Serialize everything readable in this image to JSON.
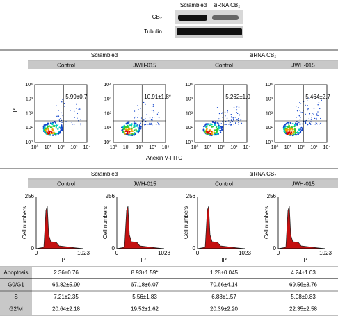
{
  "blot": {
    "columns": [
      "Scrambled",
      "siRNA CB₂"
    ],
    "rows": [
      "CB₂",
      "Tubulin"
    ]
  },
  "flow": {
    "groups": [
      "Scrambled",
      "siRNA CB₂"
    ],
    "conditions": [
      "Control",
      "JWH-015",
      "Control",
      "JWH-015"
    ],
    "quadrant_labels": [
      "5.99±0.7",
      "10.91±1.8*",
      "5.262±1.0",
      "5.464±2.7"
    ],
    "y_label": "IP",
    "x_label": "Anexin V-FITC",
    "ticks": [
      "10⁰",
      "10¹",
      "10²",
      "10³",
      "10⁴"
    ]
  },
  "cycle": {
    "groups": [
      "Scrambled",
      "siRNA CB₂"
    ],
    "conditions": [
      "Control",
      "JWH-015",
      "Control",
      "JWH-015"
    ],
    "y_ticks": [
      "0",
      "256"
    ],
    "x_ticks": [
      "0",
      "1023"
    ],
    "y_label": "Cell numbers",
    "x_label": "IP"
  },
  "table": {
    "rows": [
      [
        "Apoptosis",
        "2.36±0.76",
        "8.93±1.59*",
        "1.28±0.045",
        "4.24±1.03"
      ],
      [
        "G0/G1",
        "66.82±5.99",
        "67.18±6.07",
        "70.66±4.14",
        "69.56±3.76"
      ],
      [
        "S",
        "7.21±2.35",
        "5.56±1.83",
        "6.88±1.57",
        "5.08±0.83"
      ],
      [
        "G2/M",
        "20.64±2.18",
        "19.52±1.62",
        "20.39±2.20",
        "22.35±2.58"
      ]
    ]
  }
}
